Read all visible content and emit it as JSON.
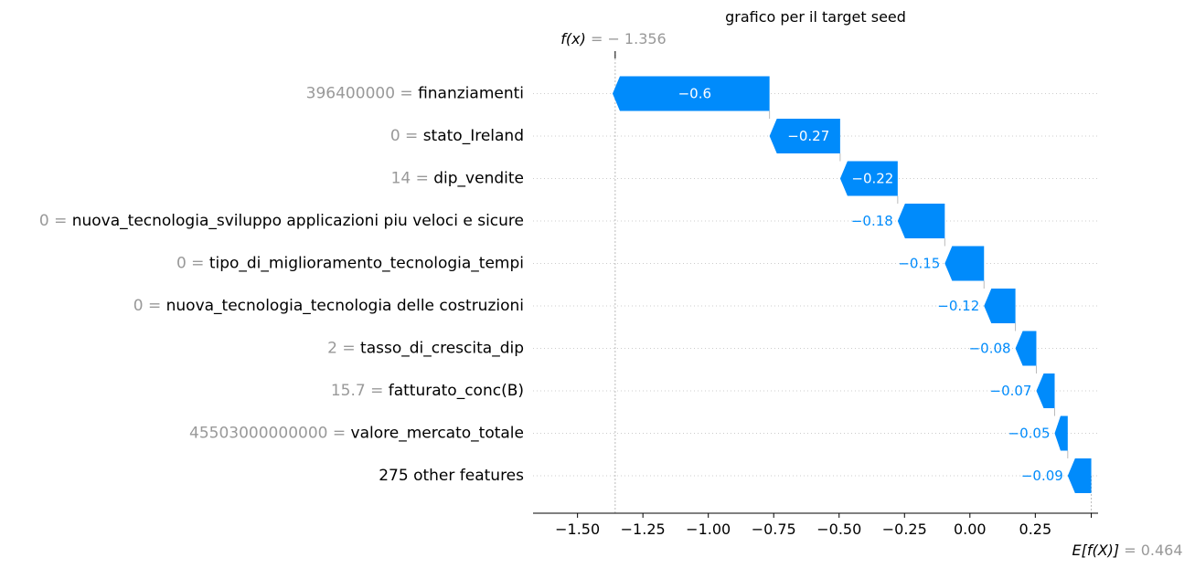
{
  "chart_data": {
    "type": "waterfall",
    "title": "grafico per il target seed",
    "fx": {
      "prefix": "f(x)",
      "value_text": " = − 1.356",
      "value": -1.356
    },
    "base": {
      "prefix": "E[f(X)]",
      "value_text": " = 0.464",
      "value": 0.464
    },
    "xlim": [
      -1.67,
      0.49
    ],
    "xticks": [
      -1.5,
      -1.25,
      -1.0,
      -0.75,
      -0.5,
      -0.25,
      0.0,
      0.25
    ],
    "xtick_labels": [
      "−1.50",
      "−1.25",
      "−1.00",
      "−0.75",
      "−0.50",
      "−0.25",
      "0.00",
      "0.25"
    ],
    "features": [
      {
        "value_label": "396400000 = ",
        "name": "finanziamenti",
        "contribution": -0.6,
        "label": "−0.6"
      },
      {
        "value_label": "0 = ",
        "name": "stato_Ireland",
        "contribution": -0.27,
        "label": "−0.27"
      },
      {
        "value_label": "14 = ",
        "name": "dip_vendite",
        "contribution": -0.22,
        "label": "−0.22"
      },
      {
        "value_label": "0 = ",
        "name": "nuova_tecnologia_sviluppo applicazioni piu veloci e sicure",
        "contribution": -0.18,
        "label": "−0.18"
      },
      {
        "value_label": "0 = ",
        "name": "tipo_di_miglioramento_tecnologia_tempi",
        "contribution": -0.15,
        "label": "−0.15"
      },
      {
        "value_label": "0 = ",
        "name": "nuova_tecnologia_tecnologia delle costruzioni",
        "contribution": -0.12,
        "label": "−0.12"
      },
      {
        "value_label": "2 = ",
        "name": "tasso_di_crescita_dip",
        "contribution": -0.08,
        "label": "−0.08"
      },
      {
        "value_label": "15.7 = ",
        "name": "fatturato_conc(B)",
        "contribution": -0.07,
        "label": "−0.07"
      },
      {
        "value_label": "45503000000000 = ",
        "name": "valore_mercato_totale",
        "contribution": -0.05,
        "label": "−0.05"
      },
      {
        "value_label": "",
        "name": "275 other features",
        "contribution": -0.09,
        "label": "−0.09"
      }
    ],
    "colors": {
      "negative": "#008bfb",
      "muted": "#999999",
      "text": "#000000",
      "grid": "#cccccc"
    }
  }
}
